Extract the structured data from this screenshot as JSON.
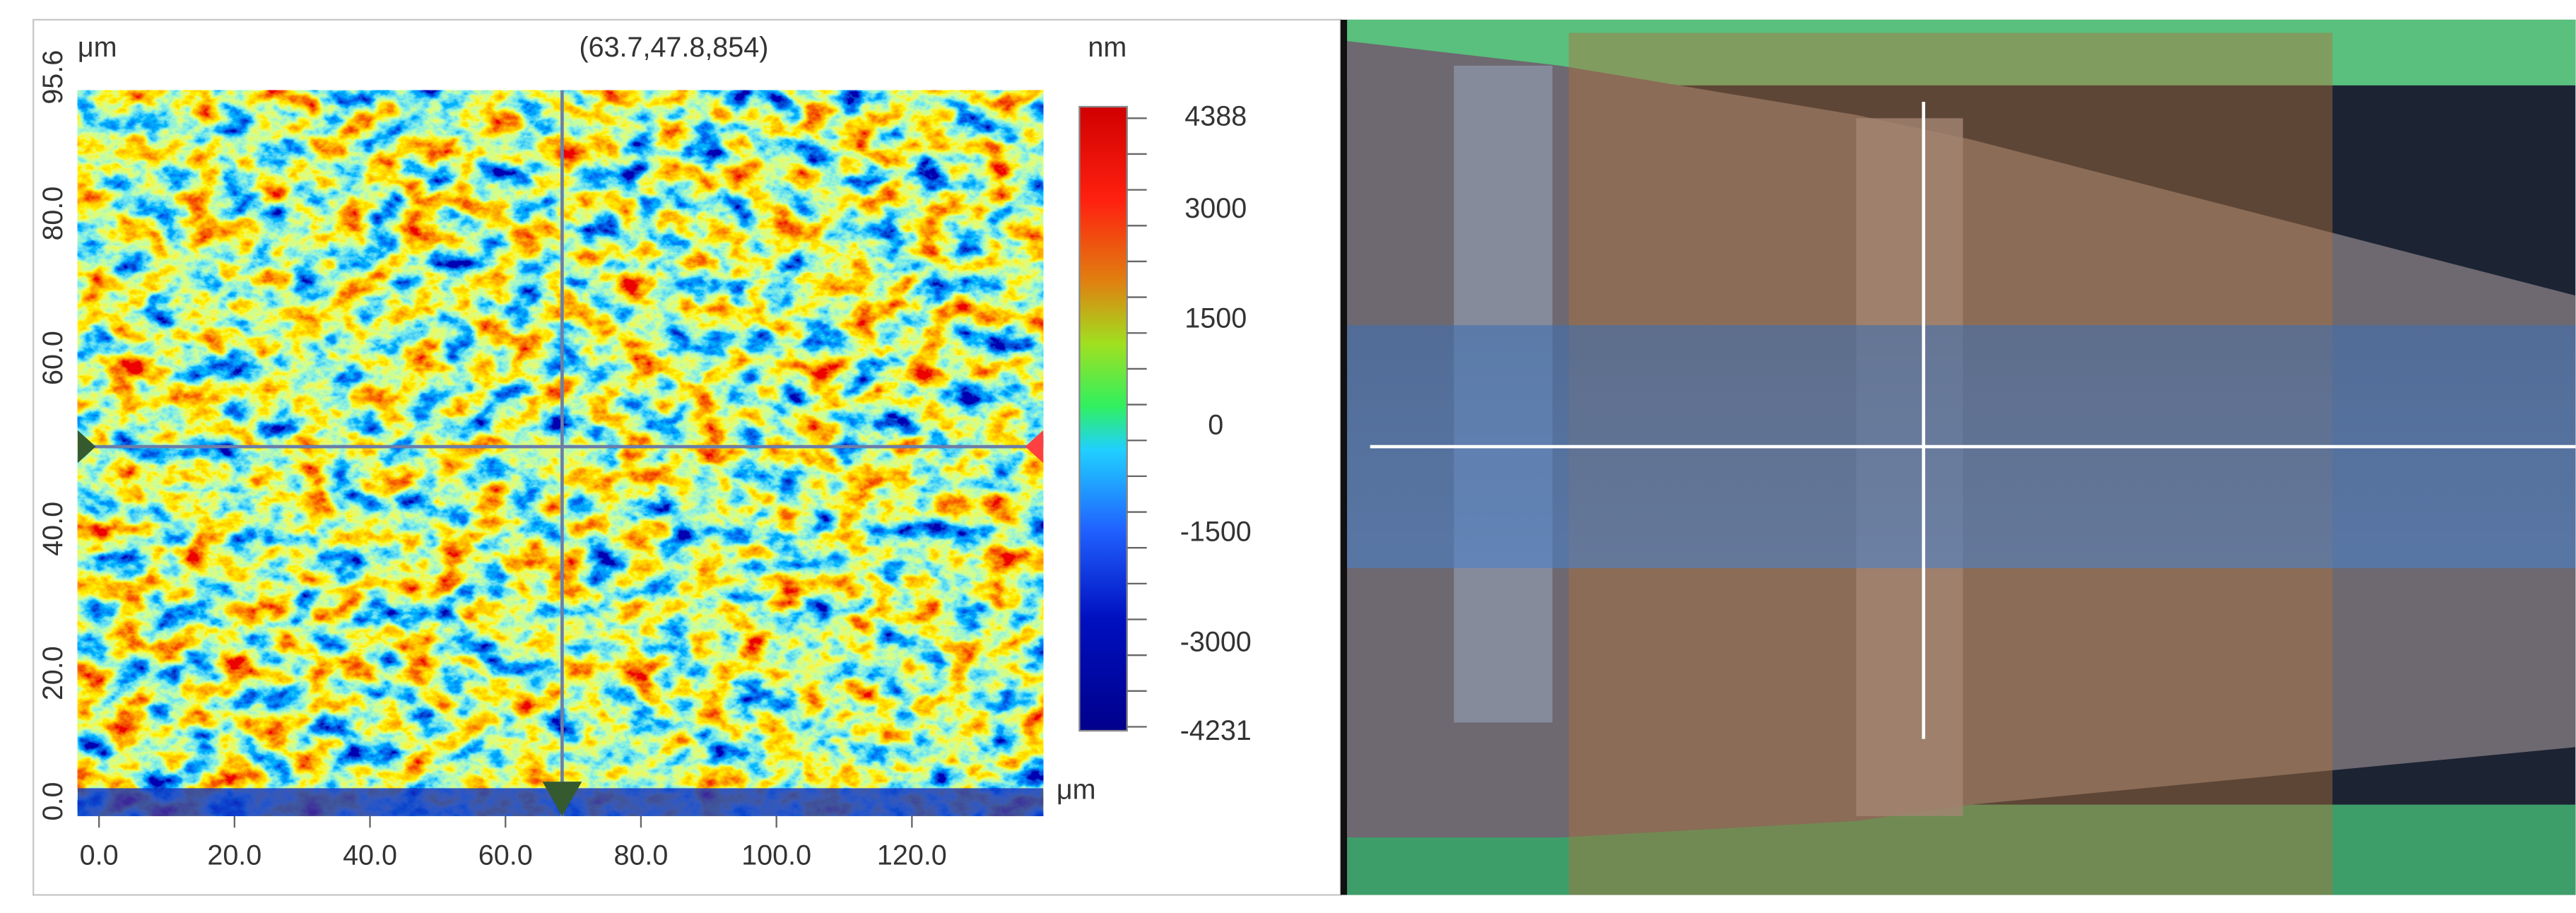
{
  "left_panel": {
    "y_unit": "μm",
    "readout": "(63.7,47.8,854)",
    "z_unit": "nm",
    "x_unit": "μm",
    "y_ticks": [
      "95.6",
      "80.0",
      "60.0",
      "40.0",
      "20.0",
      "0.0"
    ],
    "x_ticks": [
      "0.0",
      "20.0",
      "40.0",
      "60.0",
      "80.0",
      "100.0",
      "120.0"
    ],
    "colorbar_ticks": [
      "4388",
      "3000",
      "1500",
      "0",
      "-1500",
      "-3000",
      "-4231"
    ]
  }
}
